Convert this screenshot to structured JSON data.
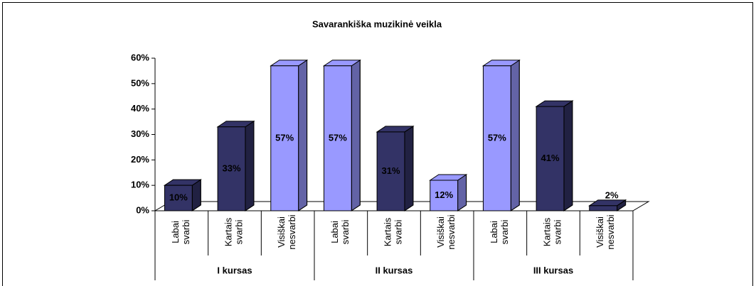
{
  "chart_data": {
    "type": "bar3d",
    "title": "Savarankiška muzikinė veikla",
    "categories": [
      "Labai svarbi",
      "Kartais svarbi",
      "Visiškai nesvarbi",
      "Labai svarbi",
      "Kartais svarbi",
      "Visiškai nesvarbi",
      "Labai svarbi",
      "Kartais svarbi",
      "Visiškai nesvarbi"
    ],
    "groups": [
      "I kursas",
      "II kursas",
      "III kursas"
    ],
    "values": [
      10,
      33,
      57,
      57,
      31,
      12,
      57,
      41,
      2
    ],
    "value_labels": [
      "10%",
      "33%",
      "57%",
      "57%",
      "31%",
      "12%",
      "57%",
      "41%",
      "2%"
    ],
    "colors": [
      "#333366",
      "#333366",
      "#9999ff",
      "#9999ff",
      "#333366",
      "#9999ff",
      "#9999ff",
      "#333366",
      "#333366"
    ],
    "ylim": [
      0,
      60
    ],
    "yticks": [
      {
        "value": 0,
        "label": "0%"
      },
      {
        "value": 10,
        "label": "10%"
      },
      {
        "value": 20,
        "label": "20%"
      },
      {
        "value": 30,
        "label": "30%"
      },
      {
        "value": 40,
        "label": "40%"
      },
      {
        "value": 50,
        "label": "50%"
      },
      {
        "value": 60,
        "label": "60%"
      }
    ]
  }
}
